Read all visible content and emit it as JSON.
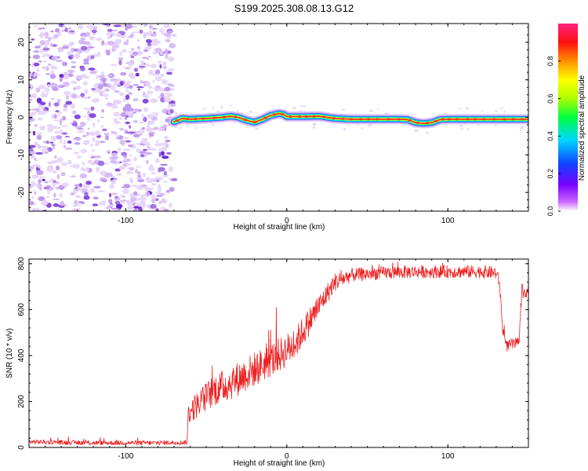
{
  "title": "S199.2025.308.08.13.G12",
  "colors": {
    "snr_line": "#ee2020",
    "axis": "#000000",
    "background": "#ffffff"
  },
  "chart_data": [
    {
      "type": "heatmap",
      "xlabel": "Height of straight line (km)",
      "ylabel": "Frequency (Hz)",
      "xlim": [
        -160,
        150
      ],
      "ylim": [
        -25,
        25
      ],
      "x_ticks": [
        -100,
        0,
        100
      ],
      "y_ticks": [
        -20,
        -10,
        0,
        10,
        20
      ],
      "x_tick_labels": [
        "-100",
        "0",
        "100"
      ],
      "y_tick_labels": [
        "-20",
        "-10",
        "0",
        "10",
        "20"
      ],
      "noise_region_x": [
        -160,
        -70
      ],
      "signal_start_x": -70,
      "ridge": {
        "x": [
          -70,
          -65,
          -60,
          -50,
          -40,
          -35,
          -30,
          -25,
          -20,
          -15,
          -10,
          -5,
          -2,
          0,
          10,
          20,
          30,
          40,
          50,
          60,
          70,
          75,
          80,
          85,
          90,
          95,
          100,
          110,
          120,
          130,
          140,
          148
        ],
        "freq": [
          -1.2,
          -0.3,
          -0.5,
          -0.3,
          0.0,
          0.3,
          0.0,
          -0.8,
          -1.3,
          -0.5,
          0.5,
          1.0,
          0.8,
          0.2,
          0.2,
          0.3,
          -0.3,
          -0.5,
          -0.5,
          -0.5,
          -0.5,
          -0.6,
          -1.4,
          -1.6,
          -1.4,
          -0.6,
          -0.5,
          -0.5,
          -0.5,
          -0.5,
          -0.5,
          -0.5
        ]
      },
      "colorbar": {
        "label": "Normalized spectral amplitude",
        "range": [
          0,
          1
        ],
        "ticks": [
          0.0,
          0.2,
          0.4,
          0.6,
          0.8
        ],
        "tick_labels": [
          "0.0",
          "0.2",
          "0.4",
          "0.6",
          "0.8"
        ]
      }
    },
    {
      "type": "line",
      "xlabel": "Height of straight line (km)",
      "ylabel": "SNR (10 * v/v)",
      "xlim": [
        -160,
        150
      ],
      "ylim": [
        0,
        820
      ],
      "x_ticks": [
        -100,
        0,
        100
      ],
      "y_ticks": [
        0,
        200,
        400,
        600,
        800
      ],
      "x_tick_labels": [
        "-100",
        "0",
        "100"
      ],
      "y_tick_labels": [
        "0",
        "200",
        "400",
        "600",
        "800"
      ],
      "series": [
        {
          "name": "SNR",
          "x": [
            -160,
            -140,
            -120,
            -100,
            -80,
            -62,
            -61,
            -55,
            -45,
            -35,
            -25,
            -15,
            -5,
            5,
            15,
            25,
            30,
            40,
            60,
            80,
            100,
            120,
            130,
            132,
            134,
            136,
            140,
            144,
            146,
            147,
            150
          ],
          "mean": [
            25,
            22,
            20,
            20,
            20,
            22,
            150,
            190,
            250,
            280,
            320,
            360,
            400,
            450,
            560,
            670,
            720,
            750,
            760,
            765,
            765,
            765,
            760,
            720,
            520,
            440,
            450,
            450,
            700,
            660,
            690
          ],
          "noise": [
            10,
            10,
            10,
            10,
            10,
            10,
            50,
            60,
            70,
            75,
            75,
            75,
            75,
            70,
            60,
            45,
            40,
            30,
            28,
            28,
            28,
            28,
            28,
            25,
            25,
            25,
            25,
            25,
            25,
            25,
            25
          ]
        }
      ]
    }
  ]
}
